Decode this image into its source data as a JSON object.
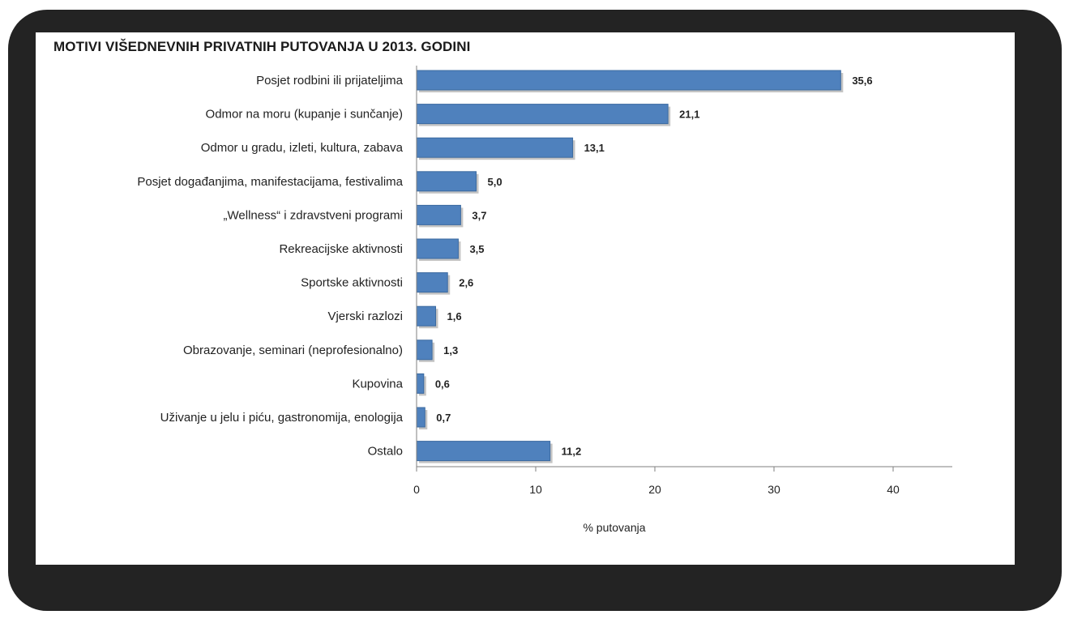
{
  "chart_data": {
    "type": "bar",
    "orientation": "horizontal",
    "title": "MOTIVI VIŠEDNEVNIH PRIVATNIH PUTOVANJA U 2013. GODINI",
    "xlabel": "% putovanja",
    "ylabel": "",
    "xlim": [
      0,
      45
    ],
    "xticks": [
      0,
      10,
      20,
      30,
      40
    ],
    "tick_labels": [
      "0",
      "10",
      "20",
      "30",
      "40"
    ],
    "grid": false,
    "categories": [
      "Posjet rodbini ili prijateljima",
      "Odmor na moru (kupanje i sunčanje)",
      "Odmor u gradu, izleti, kultura, zabava",
      "Posjet događanjima, manifestacijama, festivalima",
      "„Wellness“ i zdravstveni programi",
      "Rekreacijske aktivnosti",
      "Sportske aktivnosti",
      "Vjerski razlozi",
      "Obrazovanje, seminari (neprofesionalno)",
      "Kupovina",
      "Uživanje u jelu i piću, gastronomija, enologija",
      "Ostalo"
    ],
    "values": [
      35.6,
      21.1,
      13.1,
      5.0,
      3.7,
      3.5,
      2.6,
      1.6,
      1.3,
      0.6,
      0.7,
      11.2
    ],
    "value_labels": [
      "35,6",
      "21,1",
      "13,1",
      "5,0",
      "3,7",
      "3,5",
      "2,6",
      "1,6",
      "1,3",
      "0,6",
      "0,7",
      "11,2"
    ],
    "colors": {
      "bar": "#4f81bd",
      "bar_edge": "#3b6aa0",
      "shadow": "#c4c4c4",
      "axis": "#7f7f7f"
    }
  }
}
